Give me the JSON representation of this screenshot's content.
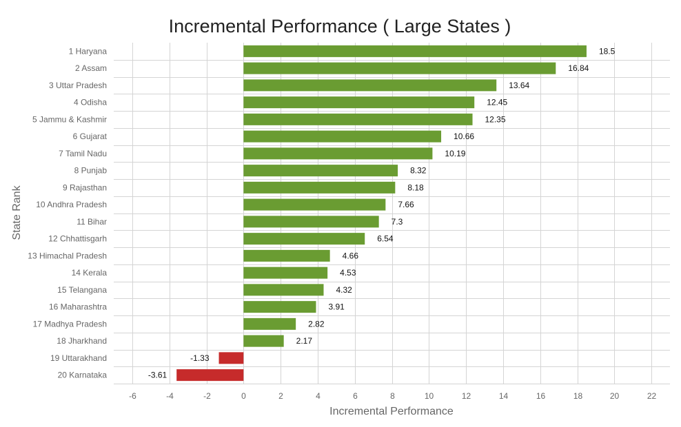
{
  "chart_data": {
    "type": "bar",
    "orientation": "horizontal",
    "title": "Incremental Performance ( Large States )",
    "xlabel": "Incremental Performance",
    "ylabel": "State Rank",
    "xlim": [
      -7,
      23
    ],
    "xticks": [
      -6,
      -4,
      -2,
      0,
      2,
      4,
      6,
      8,
      10,
      12,
      14,
      16,
      18,
      20,
      22
    ],
    "grid": true,
    "legend": "none",
    "colors": {
      "positive": "#6a9c32",
      "negative": "#c62b2b"
    },
    "categories": [
      "1 Haryana",
      "2 Assam",
      "3 Uttar Pradesh",
      "4 Odisha",
      "5 Jammu & Kashmir",
      "6 Gujarat",
      "7 Tamil Nadu",
      "8 Punjab",
      "9 Rajasthan",
      "10 Andhra Pradesh",
      "11 Bihar",
      "12 Chhattisgarh",
      "13 Himachal Pradesh",
      "14 Kerala",
      "15 Telangana",
      "16 Maharashtra",
      "17 Madhya Pradesh",
      "18 Jharkhand",
      "19 Uttarakhand",
      "20 Karnataka"
    ],
    "values": [
      18.5,
      16.84,
      13.64,
      12.45,
      12.35,
      10.66,
      10.19,
      8.32,
      8.18,
      7.66,
      7.3,
      6.54,
      4.66,
      4.53,
      4.32,
      3.91,
      2.82,
      2.17,
      -1.33,
      -3.61
    ],
    "value_labels": [
      "18.5",
      "16.84",
      "13.64",
      "12.45",
      "12.35",
      "10.66",
      "10.19",
      "8.32",
      "8.18",
      "7.66",
      "7.3",
      "6.54",
      "4.66",
      "4.53",
      "4.32",
      "3.91",
      "2.82",
      "2.17",
      "-1.33",
      "-3.61"
    ]
  }
}
